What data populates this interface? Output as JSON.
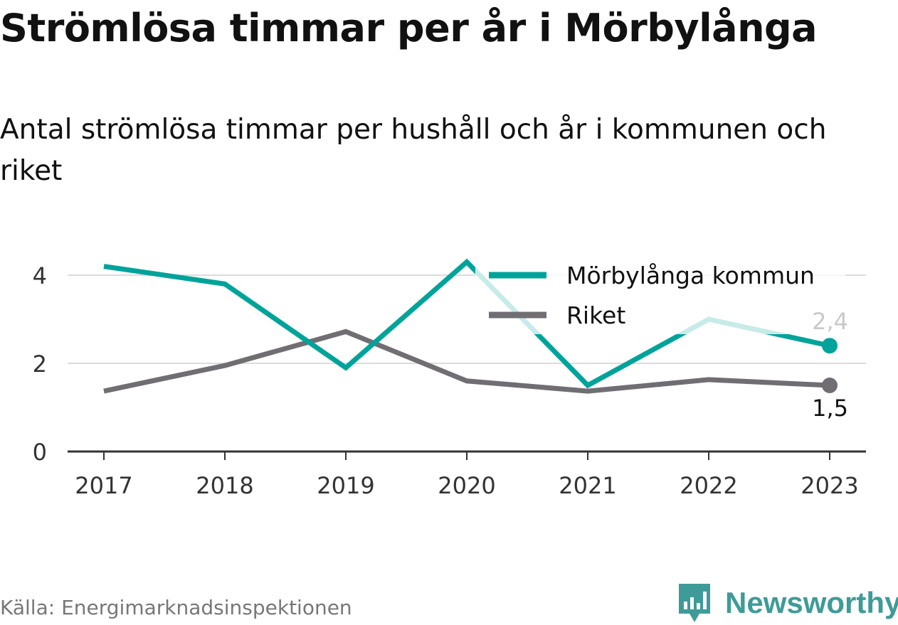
{
  "header": {
    "title": "Strömlösa timmar per år i Mörbylånga",
    "subtitle": "Antal strömlösa timmar per hushåll och år i kommunen och riket"
  },
  "chart_data": {
    "type": "line",
    "title": "Strömlösa timmar per år i Mörbylånga",
    "subtitle": "Antal strömlösa timmar per hushåll och år i kommunen och riket",
    "xlabel": "",
    "ylabel": "",
    "categories": [
      "2017",
      "2018",
      "2019",
      "2020",
      "2021",
      "2022",
      "2023"
    ],
    "ylim": [
      0,
      4.6
    ],
    "yticks": [
      0,
      2,
      4
    ],
    "grid": true,
    "legend_position": "top-right",
    "series": [
      {
        "name": "Mörbylånga kommun",
        "color": "#00a39a",
        "values": [
          4.2,
          3.8,
          1.9,
          4.3,
          1.5,
          3.0,
          2.4
        ]
      },
      {
        "name": "Riket",
        "color": "#706e73",
        "values": [
          1.37,
          1.95,
          2.72,
          1.6,
          1.37,
          1.63,
          1.5
        ]
      }
    ],
    "end_labels": [
      "2,4",
      "1,5"
    ]
  },
  "footer": {
    "source": "Källa: Energimarknadsinspektionen",
    "brand": "Newsworthy"
  },
  "colors": {
    "brand": "#3e9b98",
    "grid": "#dcdcdc",
    "axis": "#333333"
  }
}
